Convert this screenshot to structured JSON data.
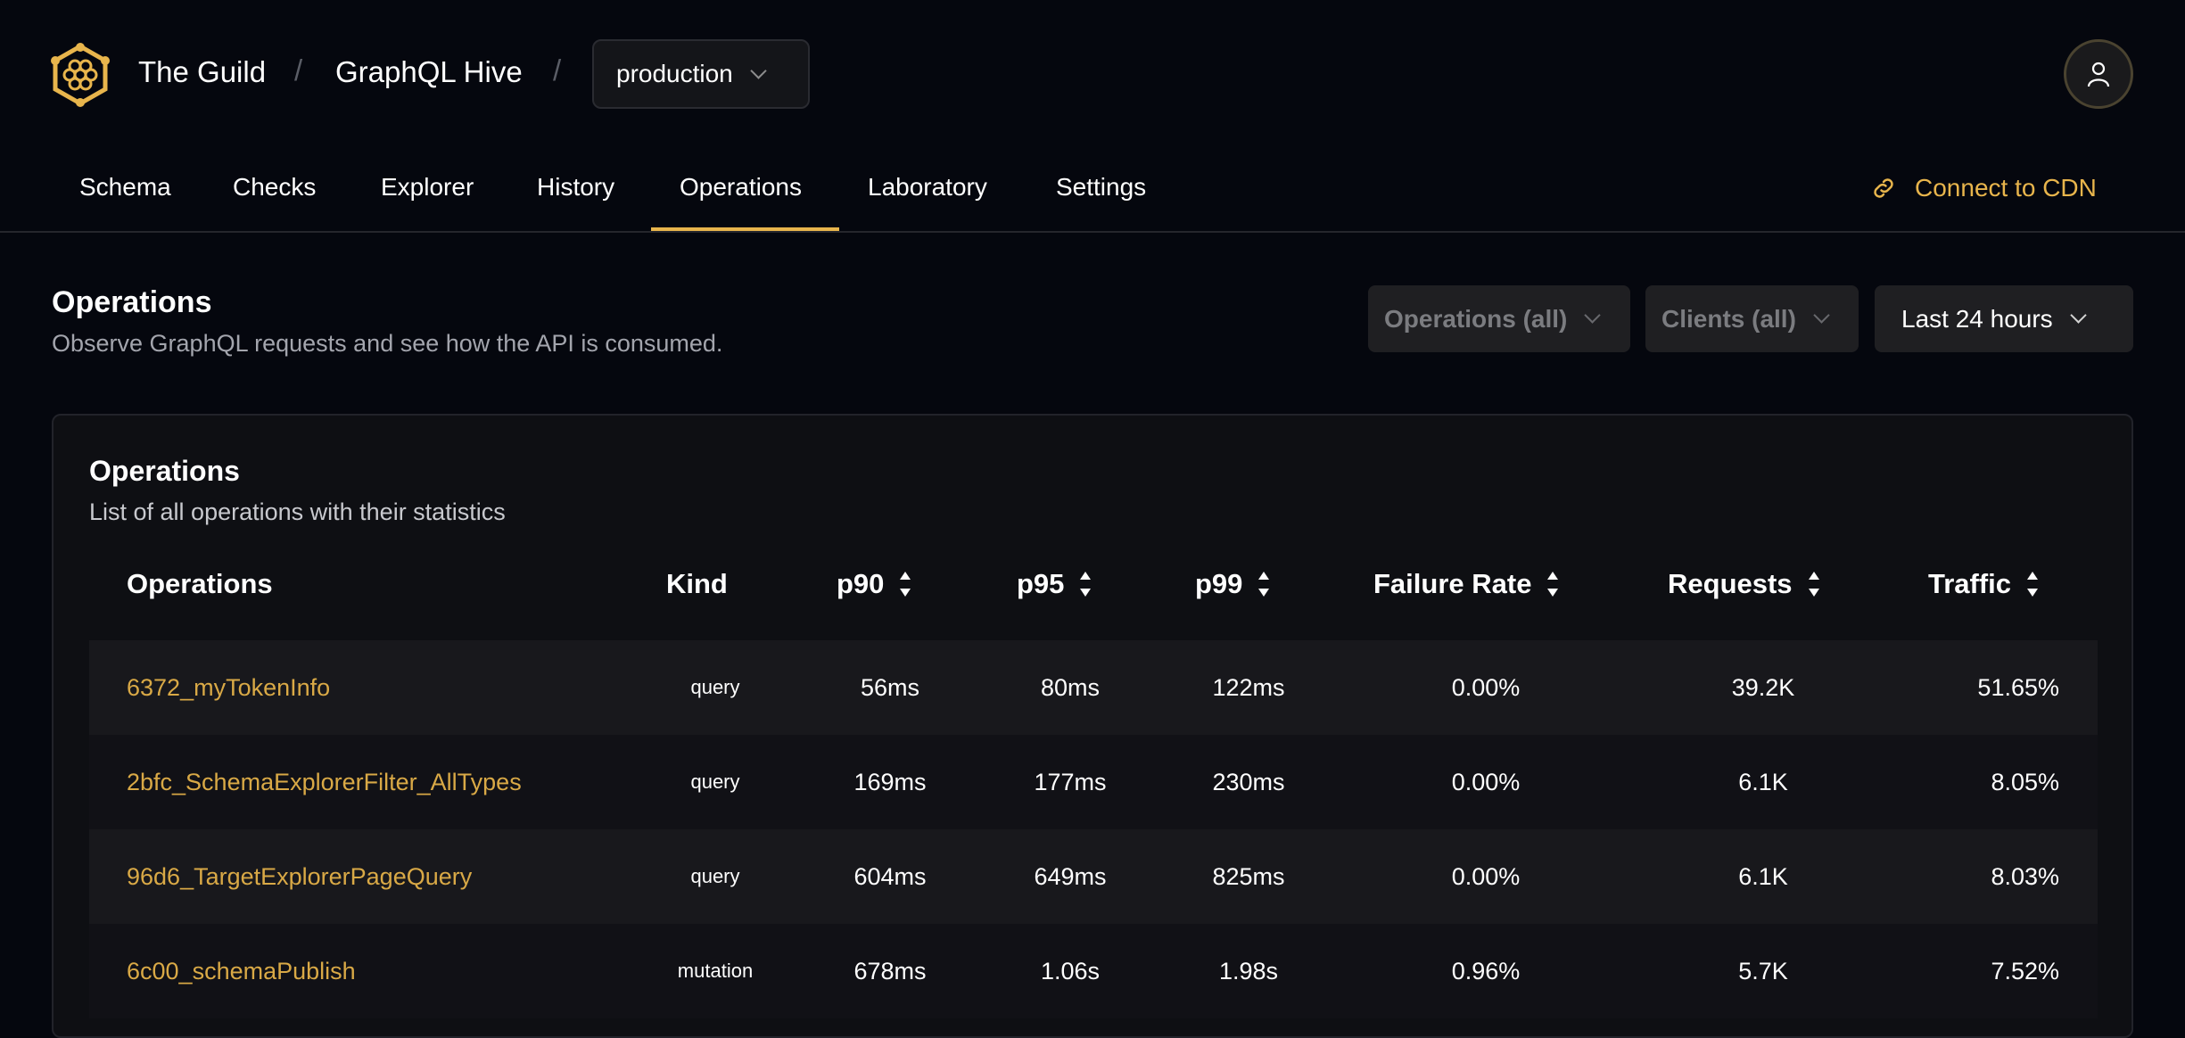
{
  "header": {
    "org": "The Guild",
    "project": "GraphQL Hive",
    "target": "production",
    "separator": "/"
  },
  "nav": {
    "tabs": [
      {
        "label": "Schema"
      },
      {
        "label": "Checks"
      },
      {
        "label": "Explorer"
      },
      {
        "label": "History"
      },
      {
        "label": "Operations",
        "active": true
      },
      {
        "label": "Laboratory"
      },
      {
        "label": "Settings"
      }
    ],
    "cdn_label": "Connect to CDN"
  },
  "page": {
    "title": "Operations",
    "subtitle": "Observe GraphQL requests and see how the API is consumed."
  },
  "filters": {
    "operations": "Operations (all)",
    "clients": "Clients (all)",
    "period": "Last 24 hours"
  },
  "card": {
    "title": "Operations",
    "subtitle": "List of all operations with their statistics"
  },
  "table": {
    "columns": [
      "Operations",
      "Kind",
      "p90",
      "p95",
      "p99",
      "Failure Rate",
      "Requests",
      "Traffic"
    ],
    "rows": [
      [
        "6372_myTokenInfo",
        "query",
        "56ms",
        "80ms",
        "122ms",
        "0.00%",
        "39.2K",
        "51.65%"
      ],
      [
        "2bfc_SchemaExplorerFilter_AllTypes",
        "query",
        "169ms",
        "177ms",
        "230ms",
        "0.00%",
        "6.1K",
        "8.05%"
      ],
      [
        "96d6_TargetExplorerPageQuery",
        "query",
        "604ms",
        "649ms",
        "825ms",
        "0.00%",
        "6.1K",
        "8.03%"
      ],
      [
        "6c00_schemaPublish",
        "mutation",
        "678ms",
        "1.06s",
        "1.98s",
        "0.96%",
        "5.7K",
        "7.52%"
      ]
    ]
  },
  "colors": {
    "accent": "#e8b54c",
    "link": "#d9a946",
    "background": "#05070e"
  }
}
